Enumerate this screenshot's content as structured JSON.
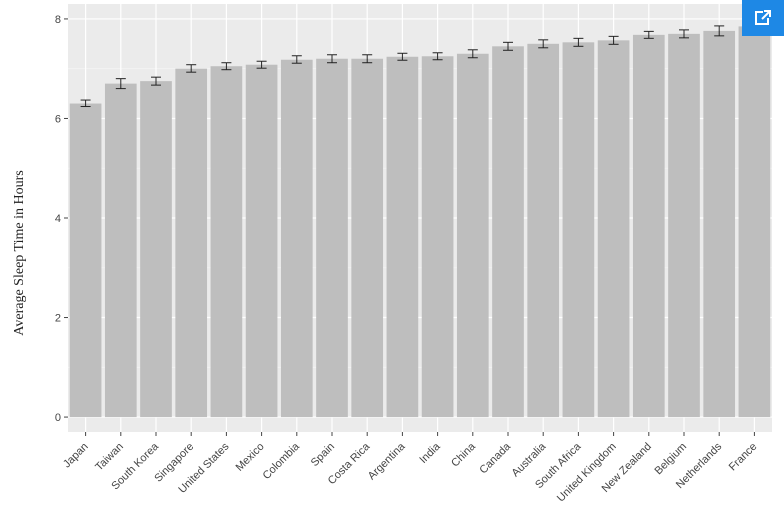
{
  "expand_button": {
    "icon": "open-in-new-icon",
    "color": "#1e88e5"
  },
  "chart_data": {
    "type": "bar",
    "title": "",
    "xlabel": "",
    "ylabel": "Average Sleep Time in Hours",
    "ylim": [
      -0.3,
      8.3
    ],
    "yticks": [
      0,
      2,
      4,
      6,
      8
    ],
    "grid": true,
    "legend": "none",
    "bar_color": "#bebebe",
    "panel_color": "#ebebeb",
    "categories": [
      "Japan",
      "Taiwan",
      "South Korea",
      "Singapore",
      "United States",
      "Mexico",
      "Colombia",
      "Spain",
      "Costa Rica",
      "Argentina",
      "India",
      "China",
      "Canada",
      "Australia",
      "South Africa",
      "United Kingdom",
      "New Zealand",
      "Belgium",
      "Netherlands",
      "France"
    ],
    "values": [
      6.3,
      6.7,
      6.75,
      7.0,
      7.05,
      7.08,
      7.18,
      7.2,
      7.2,
      7.24,
      7.25,
      7.3,
      7.45,
      7.5,
      7.53,
      7.57,
      7.68,
      7.7,
      7.76,
      7.85
    ],
    "error_lower": [
      6.24,
      6.6,
      6.67,
      6.93,
      6.98,
      7.01,
      7.11,
      7.12,
      7.12,
      7.17,
      7.18,
      7.22,
      7.37,
      7.42,
      7.45,
      7.49,
      7.61,
      7.62,
      7.66,
      7.78
    ],
    "error_upper": [
      6.37,
      6.8,
      6.83,
      7.08,
      7.12,
      7.15,
      7.26,
      7.28,
      7.28,
      7.31,
      7.32,
      7.38,
      7.53,
      7.58,
      7.61,
      7.65,
      7.75,
      7.78,
      7.86,
      7.92
    ]
  }
}
